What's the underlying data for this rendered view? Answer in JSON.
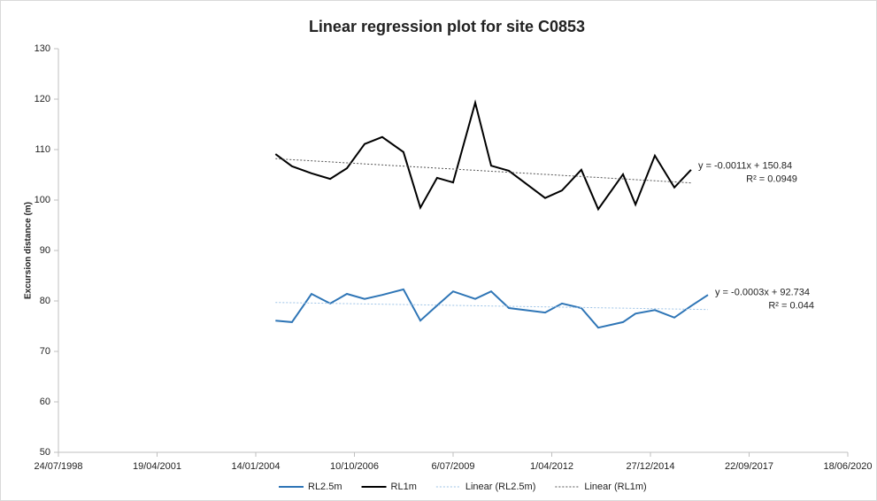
{
  "chart_data": {
    "type": "line",
    "title": "Linear regression plot for site C0853",
    "y_label": "Excursion distance (m)",
    "x": [
      "01/08/2004",
      "15/01/2005",
      "01/08/2005",
      "06/02/2006",
      "26/07/2006",
      "21/01/2007",
      "19/07/2007",
      "19/02/2008",
      "08/08/2008",
      "25/01/2009",
      "06/07/2009",
      "15/02/2010",
      "27/07/2010",
      "22/01/2011",
      "25/01/2012",
      "13/07/2012",
      "26/01/2013",
      "16/07/2013",
      "24/03/2014",
      "28/07/2014",
      "10/02/2015",
      "26/08/2015",
      "12/02/2016",
      "01/08/2016"
    ],
    "series": [
      {
        "name": "RL2.5m",
        "color": "#2e75b6",
        "style": "solid",
        "values": [
          76.1,
          75.8,
          81.4,
          79.5,
          81.4,
          80.4,
          81.2,
          82.3,
          76.1,
          79.1,
          81.9,
          80.4,
          81.9,
          78.6,
          77.7,
          79.5,
          78.6,
          74.7,
          75.8,
          77.5,
          78.2,
          76.7,
          79.0,
          81.2
        ]
      },
      {
        "name": "RL1m",
        "color": "#000000",
        "style": "solid",
        "values": [
          109.1,
          106.7,
          105.3,
          104.2,
          106.3,
          111.1,
          112.5,
          109.5,
          98.5,
          104.4,
          103.5,
          119.3,
          106.8,
          105.8,
          100.4,
          101.9,
          106.0,
          98.2,
          105.1,
          99.1,
          108.8,
          102.5,
          106.0,
          null
        ]
      },
      {
        "name": "Linear (RL2.5m)",
        "color": "#9dc3e6",
        "style": "dotted",
        "x": [
          "01/08/2004",
          "01/08/2016"
        ],
        "values": [
          79.7,
          78.3
        ],
        "equation": "y = -0.0003x + 92.734",
        "r2": "R² = 0.044"
      },
      {
        "name": "Linear (RL1m)",
        "color": "#555555",
        "style": "dotted",
        "x": [
          "01/08/2004",
          "12/02/2016"
        ],
        "values": [
          108.2,
          103.4
        ],
        "equation": "y = -0.0011x + 150.84",
        "r2": "R² = 0.0949"
      }
    ],
    "xlim": [
      "24/07/1998",
      "18/06/2020"
    ],
    "xticks": [
      "24/07/1998",
      "19/04/2001",
      "14/01/2004",
      "10/10/2006",
      "6/07/2009",
      "1/04/2012",
      "27/12/2014",
      "22/09/2017",
      "18/06/2020"
    ],
    "ylim": [
      50,
      130
    ],
    "yticks": [
      50,
      60,
      70,
      80,
      90,
      100,
      110,
      120,
      130
    ],
    "legend": "bottom"
  }
}
